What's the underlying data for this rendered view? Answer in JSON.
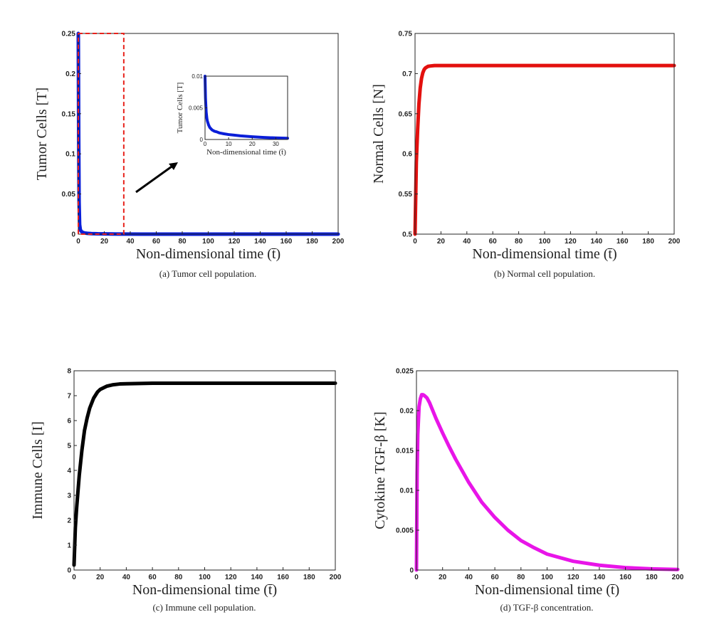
{
  "chart_data": [
    {
      "id": "a",
      "type": "line",
      "caption": "(a) Tumor cell population.",
      "xlabel": "Non-dimensional time (t̄)",
      "ylabel": "Tumor Cells [T]",
      "xlim": [
        0,
        200
      ],
      "ylim": [
        0,
        0.25
      ],
      "xticks": [
        0,
        20,
        40,
        60,
        80,
        100,
        120,
        140,
        160,
        180,
        200
      ],
      "yticks": [
        0,
        0.05,
        0.1,
        0.15,
        0.2,
        0.25
      ],
      "ytick_labels": [
        "0",
        "0.05",
        "0.1",
        "0.15",
        "0.2",
        "0.25"
      ],
      "grid": false,
      "series": [
        {
          "color": "#0a1ed8",
          "x": [
            0,
            0.3,
            0.6,
            1,
            1.5,
            2,
            3,
            4,
            5,
            7,
            10,
            15,
            20,
            30,
            50,
            100,
            150,
            200
          ],
          "y": [
            0.25,
            0.12,
            0.04,
            0.012,
            0.006,
            0.004,
            0.0025,
            0.0018,
            0.0014,
            0.001,
            0.0007,
            0.0004,
            0.0003,
            0.0001,
            5e-05,
            0,
            0,
            0
          ]
        }
      ],
      "highlight_box": {
        "x": [
          0,
          35
        ],
        "y": [
          0,
          0.25
        ],
        "color": "#e8231c"
      },
      "inset": {
        "xlabel": "Non-dimensional time (t̄)",
        "ylabel": "Tumor Cells [T]",
        "xlim": [
          0,
          35
        ],
        "ylim": [
          0,
          0.01
        ],
        "xticks": [
          0,
          10,
          20,
          30
        ],
        "yticks": [
          0,
          0.005,
          0.01
        ],
        "ytick_labels": [
          "0",
          "0.005",
          "0.01"
        ],
        "x": [
          0,
          0.2,
          0.5,
          0.8,
          1,
          1.5,
          2,
          3,
          4,
          5,
          6,
          8,
          10,
          12,
          15,
          20,
          25,
          30,
          35
        ],
        "y": [
          0.01,
          0.0065,
          0.0043,
          0.0033,
          0.0029,
          0.0023,
          0.0019,
          0.0015,
          0.0013,
          0.0012,
          0.00105,
          0.0009,
          0.00078,
          0.0007,
          0.00058,
          0.00043,
          0.00032,
          0.00025,
          0.0002
        ]
      }
    },
    {
      "id": "b",
      "type": "line",
      "caption": "(b) Normal cell population.",
      "xlabel": "Non-dimensional time (t̄)",
      "ylabel": "Normal Cells [N]",
      "xlim": [
        0,
        200
      ],
      "ylim": [
        0.5,
        0.75
      ],
      "xticks": [
        0,
        20,
        40,
        60,
        80,
        100,
        120,
        140,
        160,
        180,
        200
      ],
      "yticks": [
        0.5,
        0.55,
        0.6,
        0.65,
        0.7,
        0.75
      ],
      "ytick_labels": [
        "0.5",
        "0.55",
        "0.6",
        "0.65",
        "0.7",
        "0.75"
      ],
      "grid": false,
      "series": [
        {
          "color": "#e3100e",
          "x": [
            0,
            1,
            2,
            3,
            4,
            5,
            6,
            7,
            8,
            10,
            12,
            15,
            20,
            40,
            100,
            200
          ],
          "y": [
            0.5,
            0.59,
            0.63,
            0.662,
            0.682,
            0.694,
            0.701,
            0.705,
            0.707,
            0.709,
            0.7095,
            0.71,
            0.71,
            0.71,
            0.71,
            0.71
          ]
        }
      ]
    },
    {
      "id": "c",
      "type": "line",
      "caption": "(c) Immune cell population.",
      "xlabel": "Non-dimensional time (t̄)",
      "ylabel": "Immune Cells [I]",
      "xlim": [
        0,
        200
      ],
      "ylim": [
        0,
        8
      ],
      "xticks": [
        0,
        20,
        40,
        60,
        80,
        100,
        120,
        140,
        160,
        180,
        200
      ],
      "yticks": [
        0,
        1,
        2,
        3,
        4,
        5,
        6,
        7,
        8
      ],
      "ytick_labels": [
        "0",
        "1",
        "2",
        "3",
        "4",
        "5",
        "6",
        "7",
        "8"
      ],
      "grid": false,
      "series": [
        {
          "color": "#000000",
          "x": [
            0,
            1,
            2,
            4,
            6,
            8,
            10,
            12,
            15,
            18,
            20,
            25,
            30,
            35,
            40,
            50,
            60,
            80,
            100,
            200
          ],
          "y": [
            0.2,
            1.7,
            2.5,
            3.8,
            4.8,
            5.6,
            6.1,
            6.5,
            6.9,
            7.15,
            7.25,
            7.38,
            7.44,
            7.47,
            7.48,
            7.49,
            7.5,
            7.5,
            7.5,
            7.5
          ]
        }
      ]
    },
    {
      "id": "d",
      "type": "line",
      "caption": "(d) TGF-β concentration.",
      "xlabel": "Non-dimensional time (t̄)",
      "ylabel": "Cytokine TGF-β [K]",
      "xlim": [
        0,
        200
      ],
      "ylim": [
        0,
        0.025
      ],
      "xticks": [
        0,
        20,
        40,
        60,
        80,
        100,
        120,
        140,
        160,
        180,
        200
      ],
      "yticks": [
        0,
        0.005,
        0.01,
        0.015,
        0.02,
        0.025
      ],
      "ytick_labels": [
        "0",
        "0.005",
        "0.01",
        "0.015",
        "0.02",
        "0.025"
      ],
      "grid": false,
      "series": [
        {
          "color": "#e815e8",
          "x": [
            0,
            0.5,
            1,
            2,
            3,
            4,
            5,
            6,
            8,
            10,
            15,
            20,
            25,
            30,
            40,
            50,
            60,
            70,
            80,
            90,
            100,
            120,
            140,
            160,
            180,
            200
          ],
          "y": [
            0,
            0.012,
            0.017,
            0.0205,
            0.0215,
            0.022,
            0.022,
            0.0219,
            0.0216,
            0.021,
            0.019,
            0.0172,
            0.0155,
            0.0139,
            0.011,
            0.0085,
            0.0066,
            0.005,
            0.0037,
            0.0028,
            0.002,
            0.0011,
            0.0006,
            0.0003,
            0.00015,
            7e-05
          ]
        }
      ]
    }
  ]
}
